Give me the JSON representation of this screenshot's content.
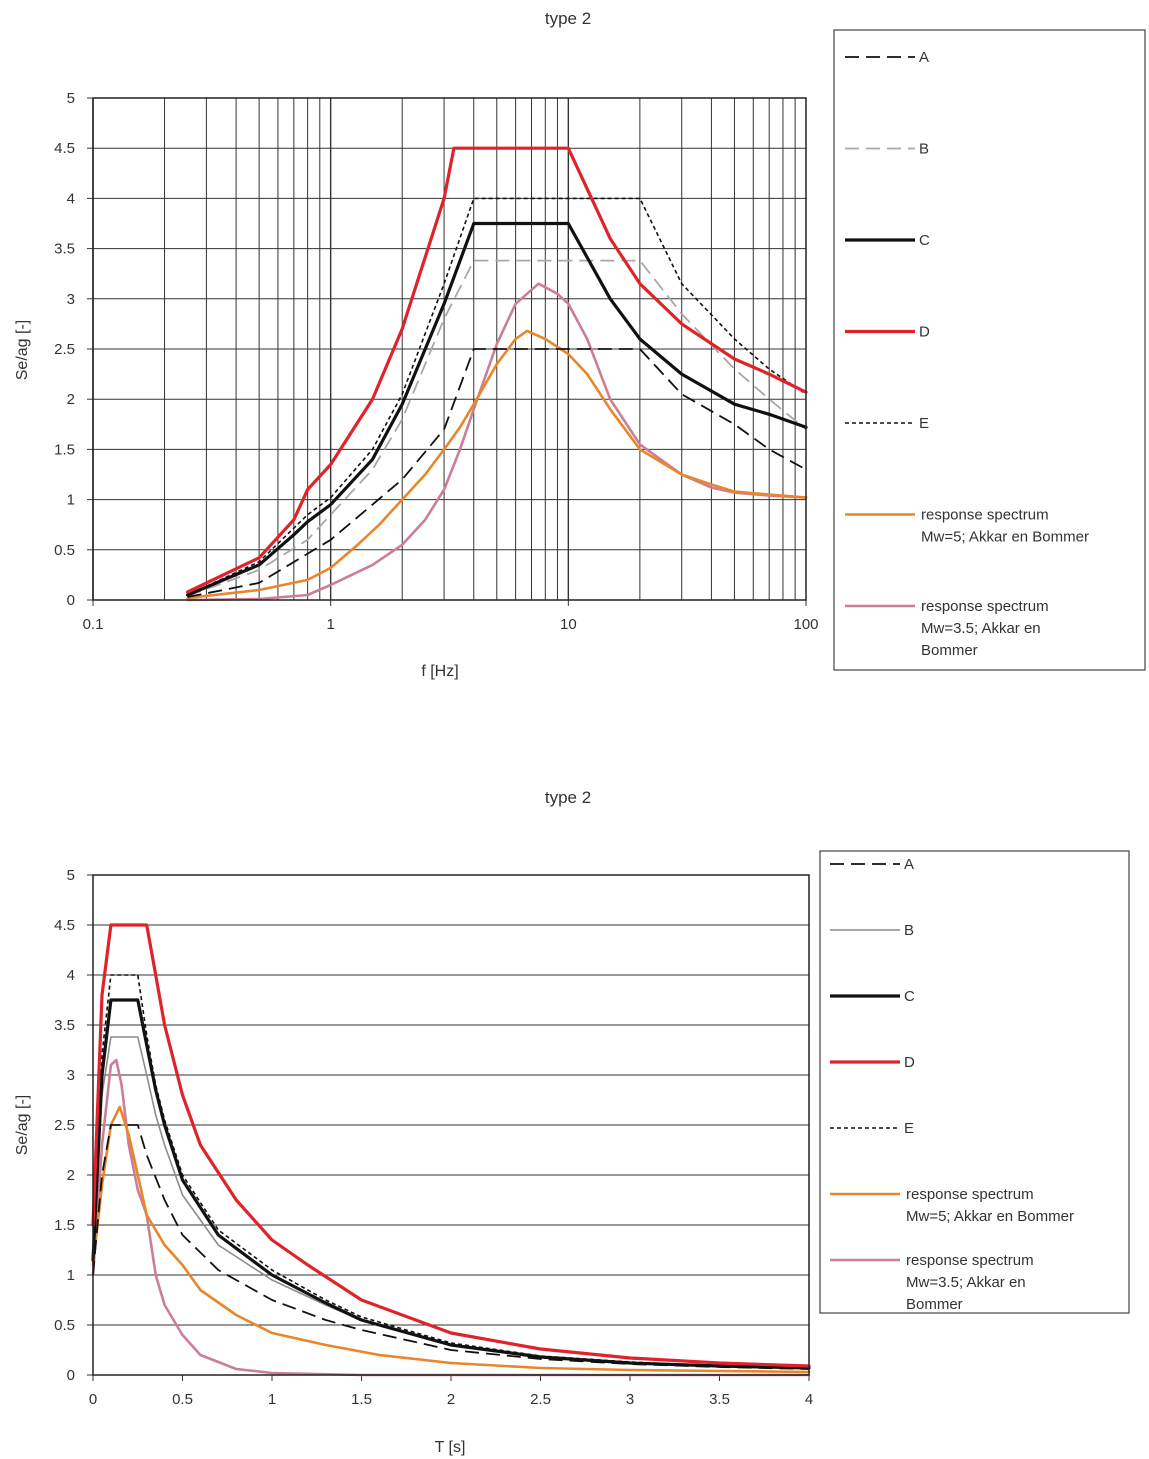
{
  "chart_data": [
    {
      "type": "line",
      "title": "type 2",
      "xlabel": "f [Hz]",
      "ylabel": "Se/ag [-]",
      "xscale": "log",
      "xlim": [
        0.1,
        100
      ],
      "ylim": [
        0,
        5
      ],
      "grid": true,
      "legend_position": "right",
      "x_ticks": [
        "0.1",
        "1",
        "10",
        "100"
      ],
      "y_ticks": [
        "0",
        "0.5",
        "1",
        "1.5",
        "2",
        "2.5",
        "3",
        "3.5",
        "4",
        "4.5",
        "5"
      ],
      "series": [
        {
          "name": "A",
          "color": "#111111",
          "dash": "long",
          "width": 1.8,
          "x": [
            0.25,
            0.5,
            1,
            2,
            3,
            4,
            6.7,
            10,
            15,
            20,
            30,
            50,
            70,
            100
          ],
          "y": [
            0.03,
            0.17,
            0.6,
            1.2,
            1.7,
            2.5,
            2.5,
            2.5,
            2.5,
            2.5,
            2.05,
            1.75,
            1.5,
            1.3
          ]
        },
        {
          "name": "B",
          "color": "#a8a8a8",
          "dash": "long",
          "width": 1.8,
          "x": [
            0.25,
            0.5,
            0.8,
            1,
            1.5,
            2,
            3,
            4,
            6.7,
            10,
            15,
            20,
            30,
            50,
            70,
            100
          ],
          "y": [
            0.04,
            0.3,
            0.6,
            0.85,
            1.3,
            1.8,
            2.8,
            3.38,
            3.38,
            3.38,
            3.38,
            3.38,
            2.85,
            2.3,
            2.0,
            1.7
          ]
        },
        {
          "name": "C",
          "color": "#111111",
          "dash": "solid",
          "width": 3.2,
          "x": [
            0.25,
            0.5,
            0.7,
            0.8,
            1,
            1.5,
            2,
            3,
            4,
            6.7,
            10,
            15,
            20,
            30,
            50,
            70,
            100
          ],
          "y": [
            0.05,
            0.35,
            0.65,
            0.78,
            0.95,
            1.4,
            1.95,
            2.95,
            3.75,
            3.75,
            3.75,
            3.0,
            2.6,
            2.25,
            1.95,
            1.85,
            1.72
          ]
        },
        {
          "name": "D",
          "color": "#e0232a",
          "dash": "solid",
          "width": 3.2,
          "x": [
            0.25,
            0.5,
            0.7,
            0.8,
            1,
            1.5,
            2,
            3,
            3.3,
            6.7,
            10,
            15,
            20,
            30,
            50,
            70,
            100
          ],
          "y": [
            0.08,
            0.42,
            0.8,
            1.1,
            1.35,
            2.0,
            2.7,
            4.0,
            4.5,
            4.5,
            4.5,
            3.6,
            3.15,
            2.75,
            2.4,
            2.25,
            2.07
          ]
        },
        {
          "name": "E",
          "color": "#111111",
          "dash": "short",
          "width": 1.6,
          "x": [
            0.25,
            0.5,
            0.8,
            1,
            1.5,
            2,
            3,
            4,
            6.7,
            10,
            15,
            20,
            30,
            50,
            70,
            100
          ],
          "y": [
            0.05,
            0.38,
            0.85,
            1.02,
            1.5,
            2.05,
            3.15,
            4.0,
            4.0,
            4.0,
            4.0,
            4.0,
            3.15,
            2.6,
            2.3,
            2.05
          ]
        },
        {
          "name": "response spectrum Mw=5; Akkar en Bommer",
          "color": "#e8862a",
          "dash": "solid",
          "width": 2.6,
          "x": [
            0.25,
            0.5,
            0.8,
            1,
            1.3,
            1.6,
            2,
            2.5,
            3,
            3.5,
            4,
            5,
            6,
            6.7,
            8,
            10,
            12,
            15,
            20,
            30,
            40,
            50,
            70,
            100
          ],
          "y": [
            0.02,
            0.1,
            0.2,
            0.32,
            0.55,
            0.75,
            1.0,
            1.25,
            1.5,
            1.72,
            1.95,
            2.35,
            2.6,
            2.68,
            2.6,
            2.45,
            2.25,
            1.9,
            1.5,
            1.25,
            1.15,
            1.08,
            1.05,
            1.02
          ]
        },
        {
          "name": "response spectrum Mw=3.5; Akkar en Bommer",
          "color": "#cc7e95",
          "dash": "solid",
          "width": 2.6,
          "x": [
            0.25,
            0.5,
            0.8,
            1,
            1.5,
            2,
            2.5,
            3,
            3.5,
            4,
            5,
            6,
            7.5,
            9,
            10,
            12,
            15,
            20,
            30,
            40,
            50,
            70,
            100
          ],
          "y": [
            0.0,
            0.01,
            0.05,
            0.15,
            0.35,
            0.55,
            0.8,
            1.1,
            1.5,
            1.9,
            2.55,
            2.95,
            3.15,
            3.05,
            2.95,
            2.6,
            2.0,
            1.55,
            1.25,
            1.12,
            1.07,
            1.04,
            1.02
          ]
        }
      ]
    },
    {
      "type": "line",
      "title": "type 2",
      "xlabel": "T [s]",
      "ylabel": "Se/ag [-]",
      "xlim": [
        0,
        4
      ],
      "ylim": [
        0,
        5
      ],
      "grid": "horizontal",
      "legend_position": "right",
      "x_ticks": [
        "0",
        "0.5",
        "1",
        "1.5",
        "2",
        "2.5",
        "3",
        "3.5",
        "4"
      ],
      "y_ticks": [
        "0",
        "0.5",
        "1",
        "1.5",
        "2",
        "2.5",
        "3",
        "3.5",
        "4",
        "4.5",
        "5"
      ],
      "series": [
        {
          "name": "A",
          "color": "#111111",
          "dash": "long",
          "width": 1.8,
          "x": [
            0,
            0.05,
            0.1,
            0.15,
            0.25,
            0.3,
            0.4,
            0.5,
            0.7,
            1.0,
            1.3,
            1.5,
            2,
            2.5,
            3,
            3.5,
            4
          ],
          "y": [
            1.0,
            2.0,
            2.5,
            2.5,
            2.5,
            2.2,
            1.75,
            1.4,
            1.05,
            0.75,
            0.55,
            0.45,
            0.25,
            0.16,
            0.11,
            0.08,
            0.06
          ]
        },
        {
          "name": "B",
          "color": "#8c8c8c",
          "dash": "solid",
          "width": 1.6,
          "x": [
            0,
            0.05,
            0.1,
            0.25,
            0.3,
            0.35,
            0.4,
            0.5,
            0.7,
            1.0,
            1.3,
            1.5,
            2,
            2.5,
            3,
            3.5,
            4
          ],
          "y": [
            1.2,
            2.8,
            3.38,
            3.38,
            3.0,
            2.6,
            2.3,
            1.8,
            1.3,
            0.95,
            0.7,
            0.55,
            0.3,
            0.18,
            0.12,
            0.09,
            0.07
          ]
        },
        {
          "name": "C",
          "color": "#111111",
          "dash": "solid",
          "width": 3.2,
          "x": [
            0,
            0.05,
            0.1,
            0.25,
            0.3,
            0.35,
            0.4,
            0.5,
            0.7,
            1.0,
            1.3,
            1.5,
            2,
            2.5,
            3,
            3.5,
            4
          ],
          "y": [
            1.15,
            3.0,
            3.75,
            3.75,
            3.3,
            2.85,
            2.5,
            1.95,
            1.4,
            1.0,
            0.72,
            0.55,
            0.3,
            0.18,
            0.12,
            0.09,
            0.07
          ]
        },
        {
          "name": "D",
          "color": "#e0232a",
          "dash": "solid",
          "width": 3.2,
          "x": [
            0,
            0.05,
            0.1,
            0.3,
            0.35,
            0.4,
            0.5,
            0.6,
            0.8,
            1.0,
            1.2,
            1.5,
            2,
            2.5,
            3,
            3.5,
            4
          ],
          "y": [
            1.5,
            3.8,
            4.5,
            4.5,
            4.0,
            3.5,
            2.8,
            2.3,
            1.75,
            1.35,
            1.1,
            0.75,
            0.42,
            0.26,
            0.17,
            0.12,
            0.09
          ]
        },
        {
          "name": "E",
          "color": "#111111",
          "dash": "short",
          "width": 1.6,
          "x": [
            0,
            0.05,
            0.1,
            0.25,
            0.3,
            0.35,
            0.4,
            0.5,
            0.7,
            1.0,
            1.3,
            1.5,
            2,
            2.5,
            3,
            3.5,
            4
          ],
          "y": [
            1.2,
            3.2,
            4.0,
            4.0,
            3.4,
            2.9,
            2.55,
            2.0,
            1.45,
            1.05,
            0.75,
            0.58,
            0.32,
            0.19,
            0.13,
            0.09,
            0.07
          ]
        },
        {
          "name": "response spectrum Mw=5; Akkar en Bommer",
          "color": "#e8862a",
          "dash": "solid",
          "width": 2.6,
          "x": [
            0,
            0.05,
            0.1,
            0.15,
            0.2,
            0.25,
            0.3,
            0.4,
            0.5,
            0.6,
            0.8,
            1.0,
            1.3,
            1.6,
            2,
            2.5,
            3,
            3.5,
            4
          ],
          "y": [
            1.1,
            1.9,
            2.5,
            2.68,
            2.4,
            2.0,
            1.6,
            1.3,
            1.1,
            0.85,
            0.6,
            0.42,
            0.3,
            0.2,
            0.12,
            0.07,
            0.05,
            0.04,
            0.03
          ]
        },
        {
          "name": "response spectrum Mw=3.5; Akkar en Bommer",
          "color": "#cc7e95",
          "dash": "solid",
          "width": 2.6,
          "x": [
            0,
            0.05,
            0.1,
            0.13,
            0.16,
            0.2,
            0.25,
            0.3,
            0.35,
            0.4,
            0.5,
            0.6,
            0.8,
            1.0,
            1.5,
            2,
            3,
            4
          ],
          "y": [
            1.0,
            2.3,
            3.1,
            3.15,
            2.9,
            2.3,
            1.85,
            1.6,
            1.0,
            0.7,
            0.4,
            0.2,
            0.06,
            0.02,
            0.0,
            0.0,
            0.0,
            0.0
          ]
        }
      ]
    }
  ],
  "legends": [
    {
      "items": [
        {
          "label": "A"
        },
        {
          "label": "B"
        },
        {
          "label": "C"
        },
        {
          "label": "D"
        },
        {
          "label": "E"
        },
        {
          "lines": [
            "response spectrum",
            "Mw=5; Akkar en Bommer"
          ]
        },
        {
          "lines": [
            "response spectrum",
            "Mw=3.5; Akkar en",
            "Bommer"
          ]
        }
      ]
    },
    {
      "items": [
        {
          "label": "A"
        },
        {
          "label": "B"
        },
        {
          "label": "C"
        },
        {
          "label": "D"
        },
        {
          "label": "E"
        },
        {
          "lines": [
            "response spectrum",
            "Mw=5; Akkar en Bommer"
          ]
        },
        {
          "lines": [
            "response spectrum",
            "Mw=3.5; Akkar en",
            "Bommer"
          ]
        }
      ]
    }
  ]
}
